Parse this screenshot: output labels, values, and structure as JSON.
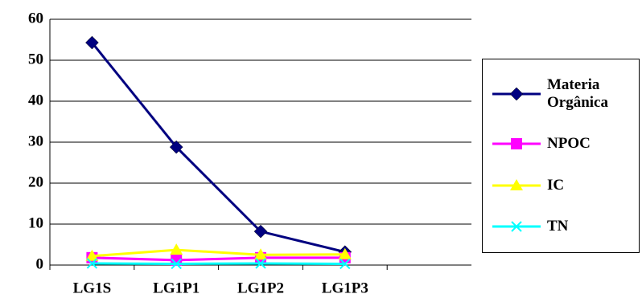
{
  "chart_data": {
    "type": "line",
    "categories": [
      "LG1S",
      "LG1P1",
      "LG1P2",
      "LG1P3",
      null
    ],
    "series": [
      {
        "name": "Materia Orgânica",
        "color": "#000080",
        "marker": "diamond",
        "values": [
          54.3,
          28.8,
          8.2,
          3.2,
          null
        ]
      },
      {
        "name": "NPOC",
        "color": "#ff00ff",
        "marker": "square",
        "values": [
          1.8,
          1.2,
          1.8,
          1.8,
          null
        ]
      },
      {
        "name": "IC",
        "color": "#ffff00",
        "marker": "triangle",
        "values": [
          2.2,
          3.7,
          2.5,
          2.6,
          null
        ]
      },
      {
        "name": "TN",
        "color": "#00ffff",
        "marker": "x",
        "values": [
          0.4,
          0.3,
          0.4,
          0.3,
          null
        ]
      }
    ],
    "ylim": [
      0,
      60
    ],
    "yticks": [
      0,
      10,
      20,
      30,
      40,
      50,
      60
    ],
    "grid": true,
    "legend": "right"
  }
}
